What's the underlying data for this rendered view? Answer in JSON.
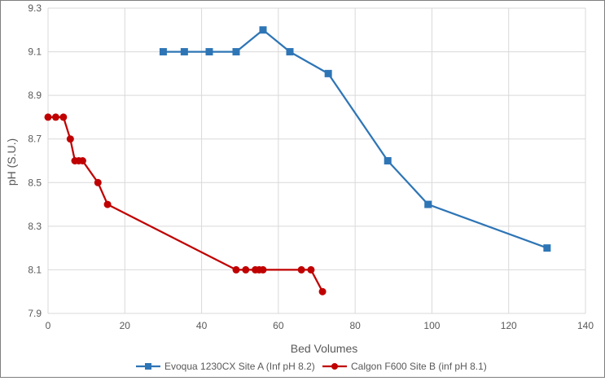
{
  "chart_data": {
    "type": "line",
    "title": "",
    "xlabel": "Bed Volumes",
    "ylabel": "pH (S.U.)",
    "xlim": [
      0,
      140
    ],
    "ylim": [
      7.9,
      9.3
    ],
    "x_ticks": [
      "0",
      "20",
      "40",
      "60",
      "80",
      "100",
      "120",
      "140"
    ],
    "y_ticks": [
      "7.9",
      "8.1",
      "8.3",
      "8.5",
      "8.7",
      "8.9",
      "9.1",
      "9.3"
    ],
    "grid": true,
    "legend_position": "bottom",
    "series": [
      {
        "name": "Evoqua 1230CX Site A (Inf pH 8.2)",
        "color": "#2e75b6",
        "marker": "square",
        "points": [
          [
            30,
            9.1
          ],
          [
            35.5,
            9.1
          ],
          [
            42,
            9.1
          ],
          [
            49,
            9.1
          ],
          [
            56,
            9.2
          ],
          [
            63,
            9.1
          ],
          [
            73,
            9.0
          ],
          [
            88.5,
            8.6
          ],
          [
            99,
            8.4
          ],
          [
            130,
            8.2
          ]
        ]
      },
      {
        "name": "Calgon F600 Site B (inf pH 8.1)",
        "color": "#c00000",
        "marker": "circle",
        "points": [
          [
            0,
            8.8
          ],
          [
            2,
            8.8
          ],
          [
            4,
            8.8
          ],
          [
            5.8,
            8.7
          ],
          [
            7,
            8.6
          ],
          [
            8,
            8.6
          ],
          [
            9,
            8.6
          ],
          [
            13,
            8.5
          ],
          [
            15.5,
            8.4
          ],
          [
            49,
            8.1
          ],
          [
            51.5,
            8.1
          ],
          [
            54,
            8.1
          ],
          [
            55,
            8.1
          ],
          [
            56,
            8.1
          ],
          [
            66,
            8.1
          ],
          [
            68.5,
            8.1
          ],
          [
            71.5,
            8.0
          ]
        ]
      }
    ]
  }
}
